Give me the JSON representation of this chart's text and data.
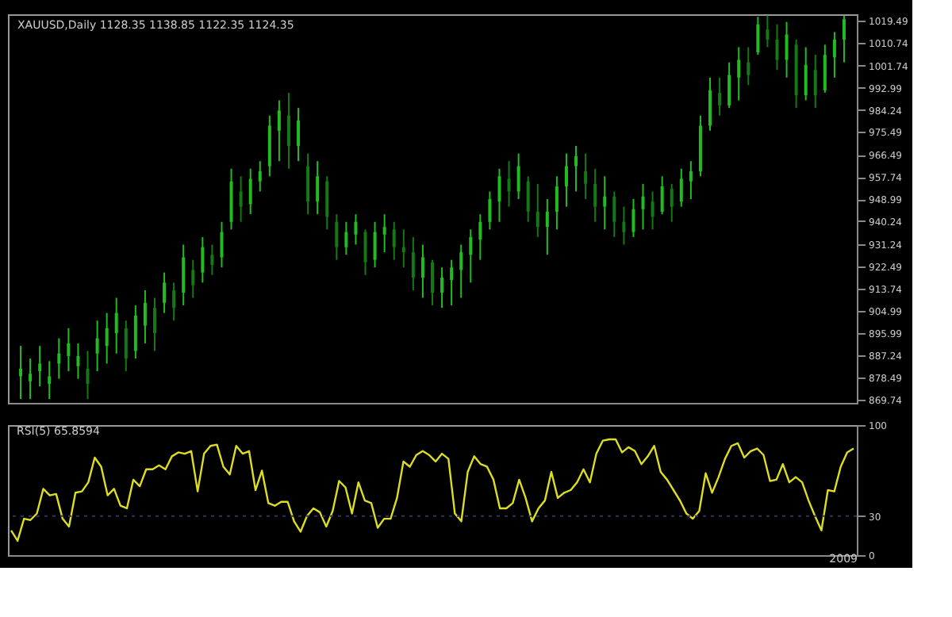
{
  "chart_data": [
    {
      "type": "candlestick",
      "title": "XAUUSD,Daily 1128.35 1138.85 1122.35 1124.35",
      "colors": [
        "#22bb22",
        "#22bb22",
        "#22bb22",
        "#22bb22",
        "#22bb22",
        "#22bb22",
        "#22bb22",
        "#147814",
        "#22bb22",
        "#22bb22",
        "#22bb22",
        "#147814",
        "#22bb22",
        "#22bb22",
        "#147814",
        "#22bb22",
        "#147814",
        "#22bb22",
        "#147814",
        "#22bb22",
        "#147814",
        "#22bb22",
        "#22bb22",
        "#147814",
        "#22bb22",
        "#22bb22",
        "#22bb22",
        "#22bb22",
        "#147814",
        "#22bb22",
        "#147814",
        "#22bb22",
        "#147814",
        "#147814",
        "#22bb22",
        "#22bb22",
        "#147814",
        "#22bb22",
        "#22bb22",
        "#147814",
        "#147814",
        "#147814",
        "#22bb22",
        "#147814",
        "#22bb22",
        "#22bb22",
        "#22bb22",
        "#22bb22",
        "#22bb22",
        "#22bb22",
        "#22bb22",
        "#147814",
        "#22bb22",
        "#147814",
        "#147814",
        "#22bb22",
        "#22bb22",
        "#22bb22",
        "#22bb22",
        "#147814",
        "#147814",
        "#22bb22",
        "#147814",
        "#147814",
        "#22bb22",
        "#22bb22",
        "#147814",
        "#22bb22",
        "#147814",
        "#22bb22",
        "#22bb22",
        "#22bb22",
        "#22bb22",
        "#147814",
        "#22bb22",
        "#22bb22",
        "#147814",
        "#22bb22",
        "#147814",
        "#147814",
        "#22bb22",
        "#147814",
        "#22bb22",
        "#147814",
        "#22bb22",
        "#22bb22",
        "#22bb22"
      ],
      "ylim": [
        868.5,
        1022
      ],
      "yticks": [
        869.74,
        878.49,
        887.24,
        895.99,
        904.99,
        913.74,
        922.49,
        931.24,
        940.24,
        948.99,
        957.74,
        966.49,
        975.49,
        984.24,
        992.99,
        1001.74,
        1010.74,
        1019.49
      ],
      "tick_labels": "y",
      "grid": false,
      "categories": [
        null,
        null,
        null,
        null,
        null,
        null,
        null,
        null,
        null,
        null,
        null,
        null,
        null,
        null,
        null,
        null,
        null,
        null,
        null,
        null,
        null,
        null,
        null,
        null,
        null,
        null,
        null,
        null,
        null,
        null,
        null,
        null,
        null,
        null,
        null,
        null,
        null,
        null,
        null,
        null,
        null,
        null,
        null,
        null,
        null,
        null,
        null,
        null,
        null,
        null,
        null,
        null,
        null,
        null,
        null,
        null,
        null,
        null,
        null,
        null,
        null,
        null,
        null,
        null,
        null,
        null,
        null,
        null,
        null,
        null,
        null,
        null,
        null,
        null,
        null,
        null,
        null,
        null,
        null,
        null,
        null,
        null,
        null,
        null,
        null,
        null,
        null
      ],
      "ohlc": [
        [
          879,
          891,
          870,
          882
        ],
        [
          877,
          886,
          870,
          880
        ],
        [
          881,
          891,
          875,
          884
        ],
        [
          876,
          885,
          870,
          879
        ],
        [
          884,
          894,
          878,
          888
        ],
        [
          887,
          898,
          881,
          892
        ],
        [
          883,
          892,
          878,
          887
        ],
        [
          882,
          889,
          870,
          876
        ],
        [
          888,
          901,
          881,
          894
        ],
        [
          891,
          904,
          884,
          898
        ],
        [
          896,
          910,
          888,
          904
        ],
        [
          898,
          901,
          881,
          886
        ],
        [
          889,
          907,
          886,
          903
        ],
        [
          899,
          913,
          892,
          908
        ],
        [
          906,
          910,
          889,
          896
        ],
        [
          908,
          920,
          904,
          916
        ],
        [
          913,
          916,
          901,
          906
        ],
        [
          912,
          931,
          907,
          926
        ],
        [
          921,
          925,
          910,
          915
        ],
        [
          920,
          934,
          916,
          930
        ],
        [
          927,
          931,
          919,
          923
        ],
        [
          926,
          940,
          922,
          936
        ],
        [
          940,
          961,
          937,
          956
        ],
        [
          952,
          958,
          940,
          946
        ],
        [
          947,
          961,
          943,
          957
        ],
        [
          956,
          964,
          952,
          960
        ],
        [
          962,
          982,
          958,
          978
        ],
        [
          976,
          988,
          964,
          984
        ],
        [
          982,
          991,
          961,
          970
        ],
        [
          970,
          985,
          964,
          980
        ],
        [
          962,
          967,
          943,
          948
        ],
        [
          948,
          964,
          943,
          958
        ],
        [
          956,
          958,
          937,
          942
        ],
        [
          940,
          943,
          925,
          930
        ],
        [
          930,
          940,
          927,
          936
        ],
        [
          935,
          943,
          931,
          940
        ],
        [
          936,
          937,
          919,
          924
        ],
        [
          925,
          940,
          922,
          936
        ],
        [
          935,
          943,
          928,
          938
        ],
        [
          937,
          940,
          925,
          930
        ],
        [
          930,
          937,
          922,
          928
        ],
        [
          928,
          934,
          913,
          918
        ],
        [
          918,
          931,
          910,
          926
        ],
        [
          924,
          925,
          907,
          912
        ],
        [
          912,
          922,
          906,
          918
        ],
        [
          917,
          925,
          907,
          922
        ],
        [
          921,
          931,
          910,
          928
        ],
        [
          927,
          937,
          916,
          934
        ],
        [
          933,
          943,
          925,
          940
        ],
        [
          940,
          952,
          937,
          949
        ],
        [
          948,
          961,
          940,
          958
        ],
        [
          957,
          964,
          946,
          952
        ],
        [
          952,
          967,
          949,
          962
        ],
        [
          956,
          958,
          940,
          944
        ],
        [
          944,
          955,
          934,
          938
        ],
        [
          938,
          949,
          927,
          944
        ],
        [
          944,
          958,
          937,
          954
        ],
        [
          954,
          967,
          946,
          962
        ],
        [
          962,
          970,
          952,
          966
        ],
        [
          960,
          967,
          949,
          955
        ],
        [
          955,
          961,
          940,
          946
        ],
        [
          946,
          958,
          937,
          950
        ],
        [
          950,
          952,
          934,
          940
        ],
        [
          940,
          946,
          931,
          936
        ],
        [
          936,
          949,
          934,
          945
        ],
        [
          945,
          955,
          937,
          950
        ],
        [
          948,
          952,
          937,
          942
        ],
        [
          944,
          958,
          943,
          954
        ],
        [
          953,
          955,
          940,
          946
        ],
        [
          948,
          961,
          946,
          957
        ],
        [
          956,
          964,
          949,
          960
        ],
        [
          960,
          982,
          958,
          978
        ],
        [
          978,
          997,
          976,
          992
        ],
        [
          991,
          997,
          982,
          986
        ],
        [
          986,
          1003,
          985,
          998
        ],
        [
          997,
          1009,
          988,
          1004
        ],
        [
          1003,
          1009,
          994,
          998
        ],
        [
          1007,
          1021,
          1006,
          1018
        ],
        [
          1016,
          1021.5,
          1009,
          1012
        ],
        [
          1012,
          1018,
          1000,
          1004
        ],
        [
          1004,
          1019,
          997,
          1014
        ],
        [
          1010,
          1012,
          985,
          990
        ],
        [
          990,
          1009,
          988,
          1002
        ],
        [
          1000,
          1006,
          985,
          990
        ],
        [
          992,
          1010,
          991,
          1006
        ],
        [
          1005,
          1015,
          997,
          1012
        ],
        [
          1012,
          1021.5,
          1003,
          1020
        ]
      ]
    },
    {
      "type": "line",
      "title": "RSI(5) 65.8594",
      "xlabel": "2009",
      "ylim": [
        0,
        100
      ],
      "yticks": [
        0,
        30,
        100
      ],
      "tick_labels": "y",
      "grid": false,
      "ref_lines": [
        {
          "axis": "y",
          "value": 30,
          "color": "#333355",
          "line_style": "dotted"
        }
      ],
      "categories": [
        null,
        null,
        null,
        null,
        null,
        null,
        null,
        null,
        null,
        null,
        null,
        null,
        null,
        null,
        null,
        null,
        null,
        null,
        null,
        null,
        null,
        null,
        null,
        null,
        null,
        null,
        null,
        null,
        null,
        null,
        null,
        null,
        null,
        null,
        null,
        null,
        null,
        null,
        null,
        null,
        null,
        null,
        null,
        null,
        null,
        null,
        null,
        null,
        null,
        null,
        null,
        null,
        null,
        null,
        null,
        null,
        null,
        null,
        null,
        null,
        null,
        null,
        null,
        null,
        null,
        null,
        null,
        null,
        null,
        null,
        null,
        null,
        null,
        null,
        null,
        null,
        null,
        null,
        null,
        null,
        null,
        null,
        null,
        null,
        null,
        null,
        null,
        null,
        null,
        null,
        null,
        null,
        null,
        null,
        null,
        null,
        null,
        null,
        null,
        null,
        null,
        null,
        null,
        null,
        null,
        null,
        null,
        null,
        null,
        null,
        null,
        null,
        null,
        null,
        null,
        null,
        null,
        null,
        null,
        null,
        null,
        null,
        null,
        null,
        null,
        null,
        null,
        null,
        null,
        null,
        null,
        null
      ],
      "series": [
        {
          "color": "#dddd22",
          "values": [
            19,
            11,
            28,
            27,
            32,
            51,
            46,
            47,
            28,
            22,
            48,
            49,
            56,
            75,
            68,
            46,
            51,
            38,
            36,
            58,
            53,
            66,
            66,
            69,
            66,
            76,
            79,
            78,
            80,
            49,
            78,
            84,
            85,
            68,
            62,
            84,
            78,
            80,
            50,
            65,
            40,
            38,
            41,
            41,
            26,
            18,
            30,
            36,
            33,
            22,
            34,
            57,
            52,
            32,
            56,
            42,
            40,
            21,
            28,
            28,
            44,
            72,
            68,
            77,
            80,
            77,
            72,
            78,
            74,
            32,
            26,
            64,
            76,
            70,
            68,
            58,
            36,
            36,
            40,
            58,
            44,
            26,
            36,
            42,
            64,
            44,
            48,
            50,
            56,
            66,
            56,
            78,
            88,
            89,
            89,
            79,
            83,
            80,
            70,
            76,
            84,
            64,
            58,
            50,
            42,
            32,
            28,
            34,
            63,
            48,
            60,
            74,
            84,
            86,
            75,
            80,
            82,
            77,
            57,
            58,
            70,
            56,
            60,
            56,
            42,
            30,
            19,
            50,
            49,
            68,
            79,
            82
          ]
        }
      ]
    }
  ]
}
